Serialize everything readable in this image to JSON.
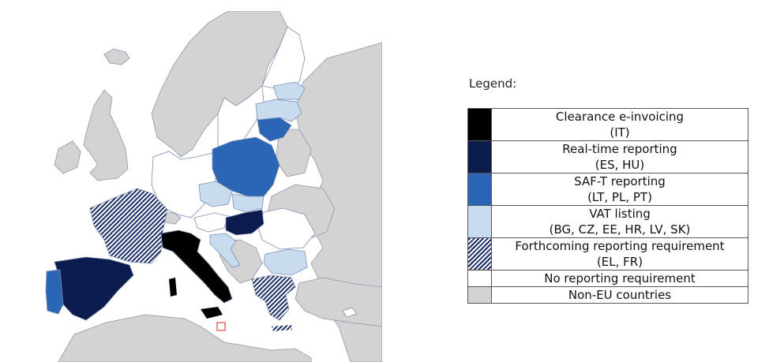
{
  "legend": {
    "title": "Legend:",
    "items": [
      {
        "label": "Clearance e-invoicing",
        "countries": "(IT)",
        "color": "#000000",
        "pattern": "solid"
      },
      {
        "label": "Real-time reporting",
        "countries": "(ES, HU)",
        "color": "#0b1c4d",
        "pattern": "solid"
      },
      {
        "label": "SAF-T reporting",
        "countries": "(LT, PL, PT)",
        "color": "#2a66b4",
        "pattern": "solid"
      },
      {
        "label": "VAT listing",
        "countries": "(BG, CZ, EE, HR, LV, SK)",
        "color": "#c9dbef",
        "pattern": "solid"
      },
      {
        "label": "Forthcoming reporting requirement",
        "countries": "(EL, FR)",
        "color": "#1c2e66",
        "pattern": "hatched"
      },
      {
        "label": "No reporting requirement",
        "countries": "",
        "color": "#ffffff",
        "pattern": "solid"
      },
      {
        "label": "Non-EU countries",
        "countries": "",
        "color": "#d3d3d3",
        "pattern": "solid"
      }
    ]
  },
  "map": {
    "countries": {
      "IT": "clearance",
      "ES": "real-time",
      "HU": "real-time",
      "LT": "saf-t",
      "PL": "saf-t",
      "PT": "saf-t",
      "BG": "vat-listing",
      "CZ": "vat-listing",
      "EE": "vat-listing",
      "HR": "vat-listing",
      "LV": "vat-listing",
      "SK": "vat-listing",
      "EL": "forthcoming",
      "FR": "forthcoming"
    },
    "sea_color": "#ffffff",
    "non_eu_color": "#d3d3d3",
    "border_color": "#7a8fb0"
  }
}
